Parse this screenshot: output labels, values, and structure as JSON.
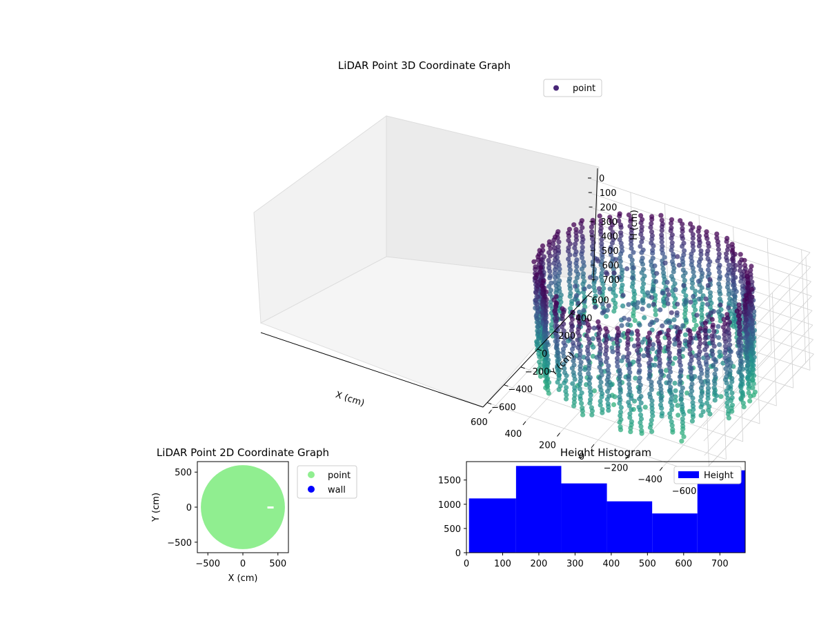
{
  "chart_data": [
    {
      "type": "scatter",
      "projection": "3d",
      "title": "LiDAR Point 3D Coordinate Graph",
      "xlabel": "X (cm)",
      "ylabel": "Y (cm)",
      "zlabel": "H (cm)",
      "xlim": [
        -650,
        650
      ],
      "ylim": [
        -650,
        650
      ],
      "zlim": [
        0,
        780
      ],
      "z_inverted": true,
      "xticks": [
        "−600",
        "−400",
        "−200",
        "0",
        "200",
        "400",
        "600"
      ],
      "yticks": [
        "−600",
        "−400",
        "−200",
        "0",
        "200",
        "400",
        "600"
      ],
      "zticks": [
        "0",
        "100",
        "200",
        "300",
        "400",
        "500",
        "600",
        "700"
      ],
      "legend": {
        "position": "upper-right",
        "entries": [
          {
            "name": "point",
            "color": "#482677"
          }
        ]
      },
      "colormap": "viridis (by height)",
      "series": [
        {
          "name": "point",
          "shape": "ring of vertical LiDAR scan lines, radius ~550 cm, heights 0–780 cm"
        }
      ],
      "grid": true
    },
    {
      "type": "scatter",
      "title": "LiDAR Point 2D Coordinate Graph",
      "xlabel": "X (cm)",
      "ylabel": "Y (cm)",
      "xlim": [
        -650,
        650
      ],
      "ylim": [
        -650,
        650
      ],
      "xticks": [
        "−500",
        "0",
        "500"
      ],
      "yticks": [
        "−500",
        "0",
        "500"
      ],
      "legend": {
        "position": "outside-right",
        "entries": [
          {
            "name": "point",
            "color": "#90ee90"
          },
          {
            "name": "wall",
            "color": "#0000ff"
          }
        ]
      },
      "series": [
        {
          "name": "point",
          "color": "#90ee90",
          "shape": "filled disc, radius ~600 cm"
        },
        {
          "name": "wall",
          "color": "#0000ff"
        }
      ]
    },
    {
      "type": "bar",
      "title": "Height Histogram",
      "xlim": [
        0,
        770
      ],
      "ylim": [
        0,
        1880
      ],
      "xticks": [
        "0",
        "100",
        "200",
        "300",
        "400",
        "500",
        "600",
        "700"
      ],
      "yticks": [
        "0",
        "500",
        "1000",
        "1500"
      ],
      "legend": {
        "position": "upper-right",
        "entries": [
          {
            "name": "Height",
            "color": "#0000ff"
          }
        ]
      },
      "bin_edges": [
        7,
        137,
        262,
        388,
        513,
        638,
        770
      ],
      "values": [
        1120,
        1790,
        1430,
        1060,
        810,
        1700
      ],
      "color": "#0000ff"
    }
  ]
}
